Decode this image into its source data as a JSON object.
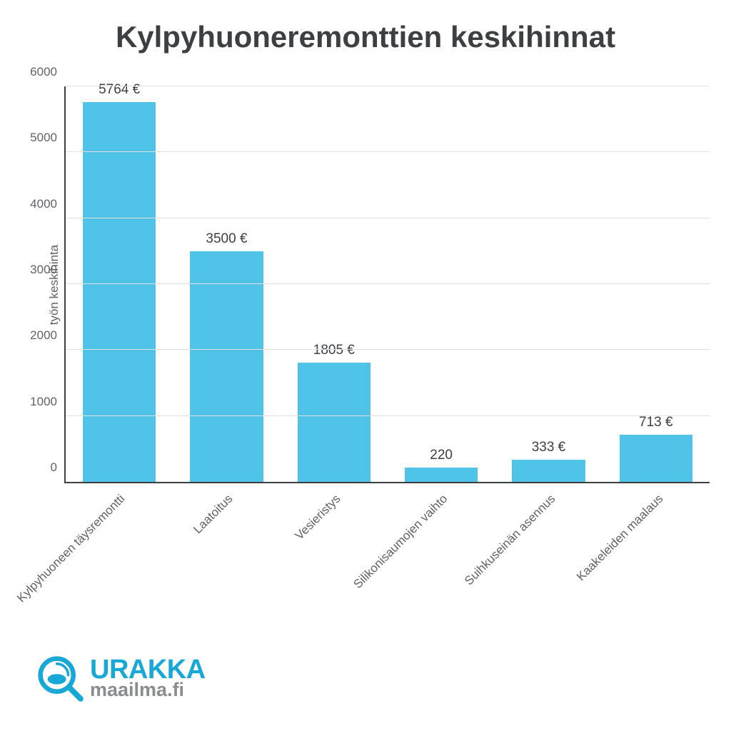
{
  "title": "Kylpyhuoneremonttien keskihinnat",
  "chart": {
    "type": "bar",
    "ylabel": "työn keskihinta",
    "ylim": [
      0,
      6000
    ],
    "ytick_step": 1000,
    "yticks": [
      "0",
      "1000",
      "2000",
      "3000",
      "4000",
      "5000",
      "6000"
    ],
    "bar_color": "#4fc3e8",
    "grid_color": "#e0e0e0",
    "axis_color": "#3c4043",
    "text_color": "#5f6368",
    "title_color": "#3c4043",
    "background_color": "#ffffff",
    "bar_width": 0.68,
    "categories": [
      "Kylpyhuoneen täysremontti",
      "Laatoitus",
      "Vesieristys",
      "Silikonisaumojen vaihto",
      "Suihkuseinän asennus",
      "Kaakeleiden maalaus"
    ],
    "values": [
      5764,
      3500,
      1805,
      220,
      333,
      713
    ],
    "value_labels": [
      "5764 €",
      "3500 €",
      "1805 €",
      "220",
      "333 €",
      "713 €"
    ]
  },
  "logo": {
    "line1": "URAKKA",
    "line2": "maailma.fi",
    "brand_color": "#18a8d8",
    "secondary_color": "#8a8c8e"
  }
}
